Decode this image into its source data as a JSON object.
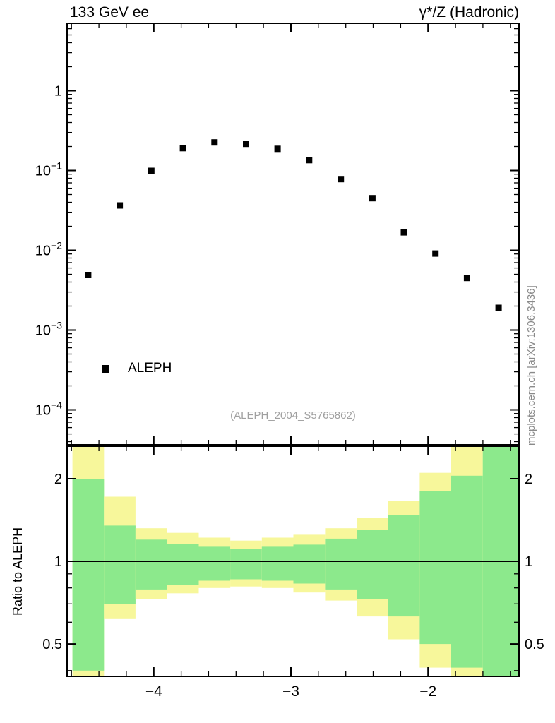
{
  "header": {
    "left_title": "133 GeV ee",
    "right_title": "γ*/Z (Hadronic)"
  },
  "watermark": "(ALEPH_2004_S5765862)",
  "side_credit": "mcplots.cern.ch [arXiv:1306.3436]",
  "ratio_ylabel": "Ratio to ALEPH",
  "legend": {
    "marker": "filled-square",
    "marker_color": "#000000",
    "label": "ALEPH"
  },
  "colors": {
    "frame": "#000000",
    "outer_band_yellow": "#f7f79b",
    "inner_band_green": "#8ce98c",
    "watermark_gray": "#a0a0a0",
    "credit_gray": "#8a8a8a"
  },
  "chart_data": {
    "type": "scatter",
    "title": "133 GeV ee — γ*/Z (Hadronic)",
    "x_axis": {
      "lim": [
        -4.632,
        -1.337
      ],
      "major_ticks": [
        -4,
        -3,
        -2
      ],
      "major_labels": [
        "−4",
        "−3",
        "−2"
      ],
      "minor_step": 0.2
    },
    "top_panel": {
      "yscale": "log",
      "ylim": [
        3.65e-05,
        7.0
      ],
      "yticks": [
        {
          "v": 1,
          "t": "1"
        },
        {
          "v": 0.1,
          "t": "10^−1"
        },
        {
          "v": 0.01,
          "t": "10^−2"
        },
        {
          "v": 0.001,
          "t": "10^−3"
        },
        {
          "v": 0.0001,
          "t": "10^−4"
        }
      ],
      "series": [
        {
          "name": "ALEPH",
          "marker": "filled-square",
          "color": "#000000",
          "x": [
            -4.478,
            -4.248,
            -4.018,
            -3.787,
            -3.557,
            -3.327,
            -3.097,
            -2.867,
            -2.636,
            -2.406,
            -2.176,
            -1.946,
            -1.716,
            -1.486
          ],
          "y": [
            0.0049,
            0.0365,
            0.099,
            0.191,
            0.225,
            0.216,
            0.187,
            0.135,
            0.078,
            0.045,
            0.0168,
            0.0091,
            0.0045,
            0.0019
          ]
        }
      ]
    },
    "bottom_panel": {
      "yscale": "log",
      "ylim": [
        0.381,
        2.626
      ],
      "reference_line": 1.0,
      "ytick_labels": [
        {
          "v": 0.5,
          "t": "0.5"
        },
        {
          "v": 1,
          "t": "1"
        },
        {
          "v": 2,
          "t": "2"
        }
      ],
      "minor_ticks": [
        0.4,
        0.6,
        0.7,
        0.8,
        0.9
      ],
      "bands": {
        "outer_color": "#f7f79b",
        "inner_color": "#8ce98c",
        "bin_edges": [
          -4.593,
          -4.363,
          -4.133,
          -3.902,
          -3.672,
          -3.442,
          -3.212,
          -2.982,
          -2.751,
          -2.521,
          -2.291,
          -2.061,
          -1.831,
          -1.601,
          -1.337
        ],
        "yellow_hi": [
          2.63,
          1.72,
          1.32,
          1.27,
          1.22,
          1.19,
          1.22,
          1.25,
          1.32,
          1.44,
          1.66,
          2.1,
          2.63,
          2.63
        ],
        "green_hi": [
          2.0,
          1.35,
          1.2,
          1.16,
          1.13,
          1.11,
          1.13,
          1.15,
          1.21,
          1.3,
          1.47,
          1.8,
          2.05,
          2.63
        ],
        "green_lo": [
          0.4,
          0.7,
          0.79,
          0.82,
          0.85,
          0.86,
          0.85,
          0.83,
          0.79,
          0.73,
          0.63,
          0.5,
          0.41,
          0.38
        ],
        "yellow_lo": [
          0.38,
          0.62,
          0.73,
          0.765,
          0.8,
          0.81,
          0.8,
          0.77,
          0.72,
          0.63,
          0.52,
          0.41,
          0.38,
          0.38
        ]
      }
    }
  }
}
